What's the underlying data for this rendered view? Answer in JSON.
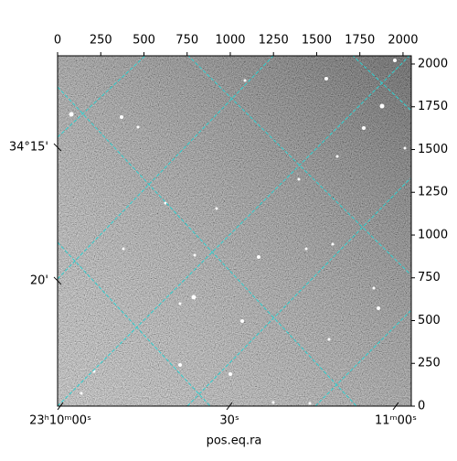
{
  "chart_data": {
    "type": "image",
    "xlabel": "pos.eq.ra",
    "xlim": [
      0,
      2048
    ],
    "ylim": [
      0,
      2048
    ],
    "xticks": [
      0,
      250,
      500,
      750,
      1000,
      1250,
      1500,
      1750,
      2000
    ],
    "yticks": [
      0,
      250,
      500,
      750,
      1000,
      1250,
      1500,
      1750,
      2000
    ],
    "world_xticks": [
      {
        "value": 16,
        "label": "23ʰ10ᵐ00ˢ"
      },
      {
        "value": 995,
        "label": "30ˢ"
      },
      {
        "value": 1958,
        "label": "11ᵐ00ˢ"
      }
    ],
    "world_yticks": [
      {
        "value": 1513,
        "label": "34°15'"
      },
      {
        "value": 733,
        "label": "20'"
      }
    ],
    "grid_color": "#2fd0d0"
  }
}
